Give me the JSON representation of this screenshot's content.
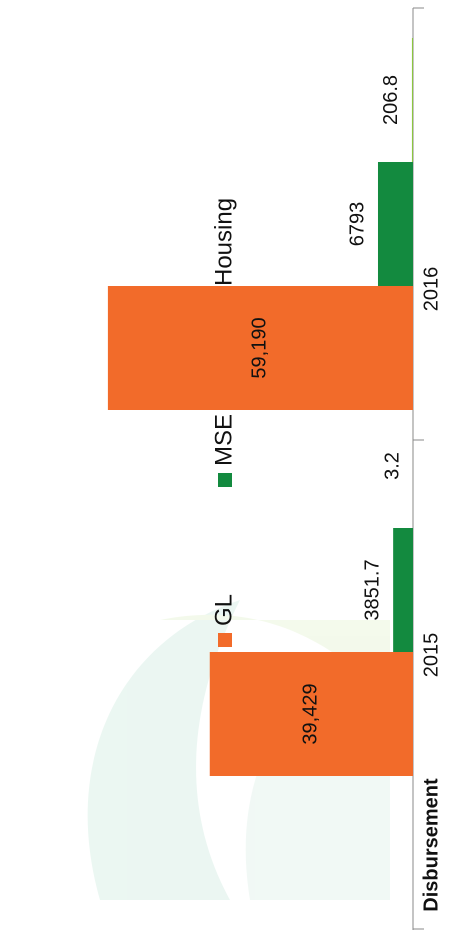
{
  "chart_data": {
    "type": "bar",
    "orientation": "rotated",
    "axis_title": "Disbursement",
    "categories": [
      "2015",
      "2016"
    ],
    "series": [
      {
        "name": "GL",
        "color": "#f26b2a",
        "values": [
          39429,
          59190
        ],
        "value_labels": [
          "39,429",
          "59,190"
        ]
      },
      {
        "name": "MSE",
        "color": "#138a3f",
        "values": [
          3851.7,
          6793
        ]
      },
      {
        "name": "Housing",
        "color": "#8cc63f",
        "values": [
          3.2,
          206.8
        ]
      }
    ]
  }
}
